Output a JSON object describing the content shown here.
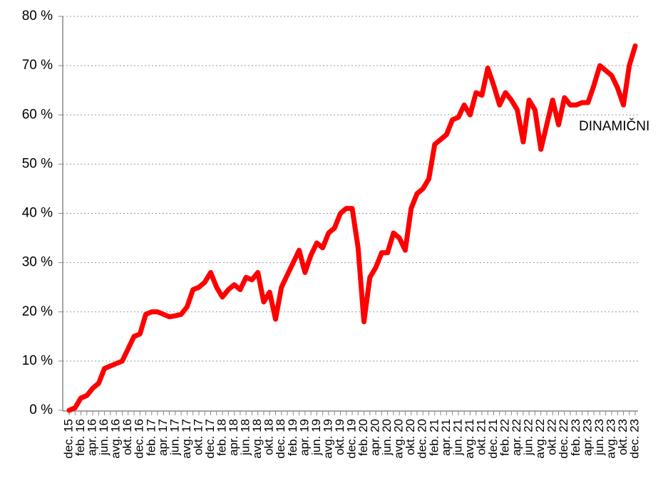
{
  "chart_data": {
    "type": "line",
    "categories": [
      "dec. 15",
      null,
      "feb. 16",
      null,
      "apr. 16",
      null,
      "jun. 16",
      null,
      "avg. 16",
      null,
      "okt. 16",
      null,
      "dec. 16",
      null,
      "feb. 17",
      null,
      "apr. 17",
      null,
      "jun. 17",
      null,
      "avg. 17",
      null,
      "okt. 17",
      null,
      "dec. 17",
      null,
      "feb. 18",
      null,
      "apr. 18",
      null,
      "jun. 18",
      null,
      "avg. 18",
      null,
      "okt. 18",
      null,
      "dec. 18",
      null,
      "feb. 19",
      null,
      "apr. 19",
      null,
      "jun. 19",
      null,
      "avg. 19",
      null,
      "okt. 19",
      null,
      "dec. 19",
      null,
      "feb. 20",
      null,
      "apr. 20",
      null,
      "jun. 20",
      null,
      "avg. 20",
      null,
      "okt. 20",
      null,
      "dec. 20",
      null,
      "feb. 21",
      null,
      "apr. 21",
      null,
      "jun. 21",
      null,
      "avg. 21",
      null,
      "okt. 21",
      null,
      "dec. 21",
      null,
      "feb. 22",
      null,
      "apr. 22",
      null,
      "jun. 22",
      null,
      "avg. 22",
      null,
      "okt. 22",
      null,
      "dec. 22",
      null,
      "feb. 23",
      null,
      "apr. 23",
      null,
      "jun. 23",
      null,
      "avg. 23",
      null,
      "okt. 23",
      null,
      "dec. 23"
    ],
    "series": [
      {
        "name": "DINAMIČNI",
        "color": "#ff0000",
        "values": [
          0,
          0.5,
          2.5,
          3,
          4.5,
          5.5,
          8.5,
          9,
          9.5,
          10,
          12.5,
          15,
          15.5,
          19.5,
          20,
          20,
          19.5,
          19,
          19.2,
          19.5,
          21,
          24.5,
          25,
          26,
          28,
          25,
          23,
          24.5,
          25.5,
          24.5,
          27,
          26.5,
          28,
          22,
          24,
          18.5,
          25,
          27.5,
          30,
          32.5,
          28,
          31.5,
          34,
          33,
          36,
          37,
          40,
          41,
          41,
          33,
          18,
          27,
          29,
          32,
          32,
          36,
          35,
          32.5,
          41,
          44,
          45,
          47,
          54,
          55,
          56,
          59,
          59.5,
          62,
          60,
          64.5,
          64,
          69.5,
          66,
          62,
          64.5,
          63,
          61,
          54.5,
          63,
          61,
          53,
          58,
          63,
          58,
          63.5,
          62,
          62,
          62.5,
          62.5,
          66,
          70,
          69,
          68,
          65.5,
          62,
          70,
          74
        ]
      }
    ],
    "ylim": [
      0,
      80
    ],
    "yticks": [
      {
        "value": 0,
        "label": "0 %"
      },
      {
        "value": 10,
        "label": "10 %"
      },
      {
        "value": 20,
        "label": "20 %"
      },
      {
        "value": 30,
        "label": "30 %"
      },
      {
        "value": 40,
        "label": "40 %"
      },
      {
        "value": 50,
        "label": "50 %"
      },
      {
        "value": 60,
        "label": "60 %"
      },
      {
        "value": 70,
        "label": "70 %"
      },
      {
        "value": 80,
        "label": "80 %"
      }
    ],
    "grid": true
  }
}
